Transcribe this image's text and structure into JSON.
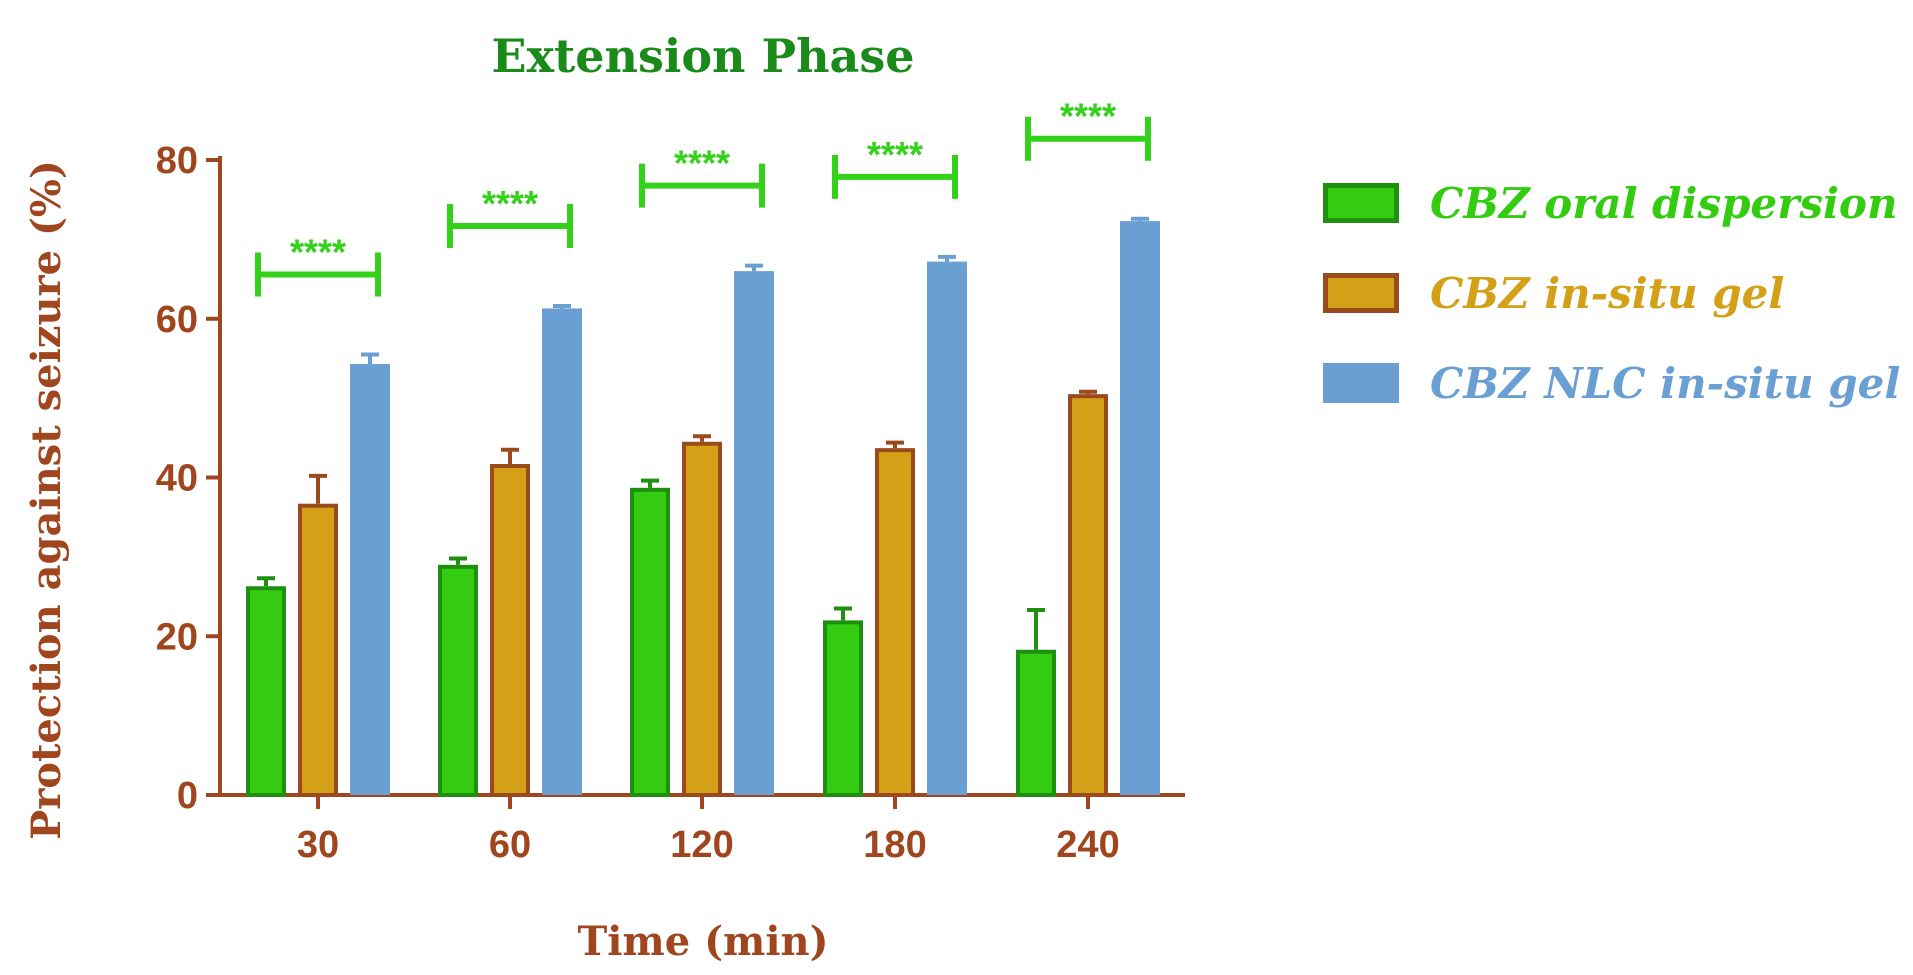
{
  "colors": {
    "axis": "#a0461e",
    "title": "#1a8a1a",
    "significance": "#33d11a",
    "oral_fill": "#33cc11",
    "oral_stroke": "#1f8f0f",
    "gel_fill": "#d4a017",
    "gel_stroke": "#9b4a1c",
    "nlc_fill": "#6a9fd4",
    "nlc_stroke": "#6a9fd4"
  },
  "chart_data": {
    "type": "bar",
    "title": "Extension Phase",
    "xlabel": "Time (min)",
    "ylabel": "Protection against seizure (%)",
    "ylim": [
      0,
      80
    ],
    "yticks": [
      "0",
      "20",
      "40",
      "60",
      "80"
    ],
    "categories": [
      "30",
      "60",
      "120",
      "180",
      "240"
    ],
    "legend_position": "right",
    "grid": false,
    "series": [
      {
        "name": "CBZ oral dispersion",
        "values": [
          26.3,
          29.0,
          38.7,
          22.0,
          18.3
        ],
        "errors": [
          1.0,
          0.8,
          0.9,
          1.5,
          5.0
        ]
      },
      {
        "name": "CBZ in-situ gel",
        "values": [
          36.7,
          41.7,
          44.5,
          43.7,
          50.5
        ],
        "errors": [
          3.5,
          1.8,
          0.7,
          0.7,
          0.3
        ]
      },
      {
        "name": "CBZ NLC in-situ gel",
        "values": [
          54.3,
          61.3,
          66.0,
          67.2,
          72.3
        ],
        "errors": [
          1.2,
          0.3,
          0.7,
          0.6,
          0.3
        ]
      }
    ],
    "annotations": [
      "****",
      "****",
      "****",
      "****",
      "****"
    ]
  }
}
